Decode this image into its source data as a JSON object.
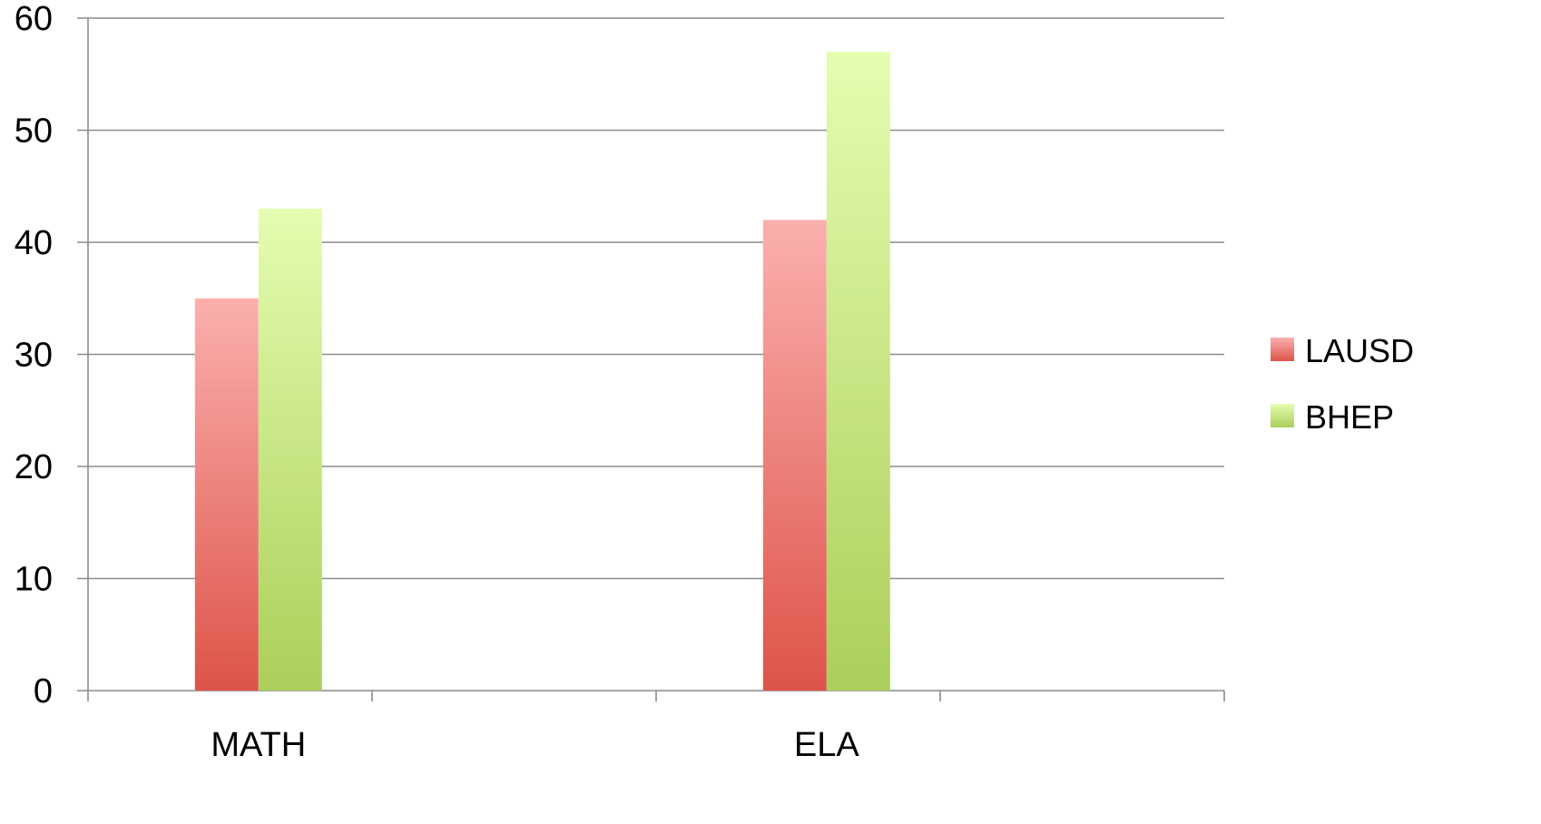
{
  "chart_data": {
    "type": "bar",
    "categories": [
      "MATH",
      "ELA"
    ],
    "series": [
      {
        "name": "LAUSD",
        "values": [
          35,
          42
        ]
      },
      {
        "name": "BHEP",
        "values": [
          43,
          57
        ]
      }
    ],
    "ylim": [
      0,
      60
    ],
    "yticks": [
      "0",
      "10",
      "20",
      "30",
      "40",
      "50",
      "60"
    ],
    "grid": true,
    "legend": "right",
    "colors": {
      "LAUSD_top": "#fbb0ae",
      "LAUSD_bottom": "#dd5449",
      "BHEP_top": "#e4fdb0",
      "BHEP_bottom": "#abcf5a",
      "grid": "#8c8c8c"
    }
  }
}
